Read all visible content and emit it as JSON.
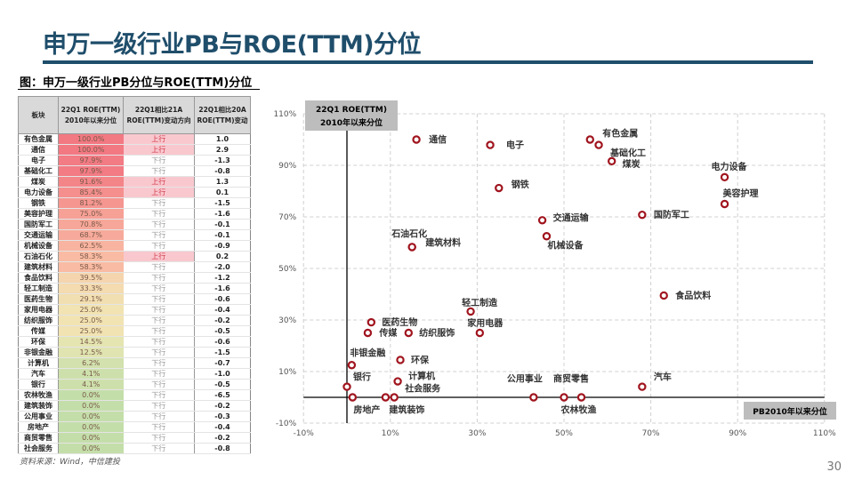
{
  "title": "申万一级行业PB与ROE(TTM)分位",
  "caption": "图：申万一级行业PB分位与ROE(TTM)分位",
  "table": {
    "headers": [
      "板块",
      "22Q1 ROE(TTM) 2010年以来分位",
      "22Q1相比21A ROE(TTM)变动方向",
      "22Q1相比20A ROE(TTM)变动"
    ],
    "rows": [
      [
        "有色金属",
        "100.0%",
        "上行",
        "1.0"
      ],
      [
        "通信",
        "100.0%",
        "上行",
        "2.9"
      ],
      [
        "电子",
        "97.9%",
        "下行",
        "-1.3"
      ],
      [
        "基础化工",
        "97.9%",
        "下行",
        "-0.8"
      ],
      [
        "煤炭",
        "91.6%",
        "上行",
        "1.3"
      ],
      [
        "电力设备",
        "85.4%",
        "上行",
        "0.1"
      ],
      [
        "钢铁",
        "81.2%",
        "下行",
        "-1.5"
      ],
      [
        "美容护理",
        "75.0%",
        "下行",
        "-1.6"
      ],
      [
        "国防军工",
        "70.8%",
        "下行",
        "-0.1"
      ],
      [
        "交通运输",
        "68.7%",
        "下行",
        "-0.1"
      ],
      [
        "机械设备",
        "62.5%",
        "下行",
        "-0.9"
      ],
      [
        "石油石化",
        "58.3%",
        "上行",
        "0.2"
      ],
      [
        "建筑材料",
        "58.3%",
        "下行",
        "-2.0"
      ],
      [
        "食品饮料",
        "39.5%",
        "下行",
        "-1.2"
      ],
      [
        "轻工制造",
        "33.3%",
        "下行",
        "-1.6"
      ],
      [
        "医药生物",
        "29.1%",
        "下行",
        "-0.6"
      ],
      [
        "家用电器",
        "25.0%",
        "下行",
        "-0.4"
      ],
      [
        "纺织服饰",
        "25.0%",
        "下行",
        "-0.2"
      ],
      [
        "传媒",
        "25.0%",
        "下行",
        "-0.5"
      ],
      [
        "环保",
        "14.5%",
        "下行",
        "-0.6"
      ],
      [
        "非银金融",
        "12.5%",
        "下行",
        "-1.5"
      ],
      [
        "计算机",
        "6.2%",
        "下行",
        "-0.7"
      ],
      [
        "汽车",
        "4.1%",
        "下行",
        "-1.0"
      ],
      [
        "银行",
        "4.1%",
        "下行",
        "-0.5"
      ],
      [
        "农林牧渔",
        "0.0%",
        "下行",
        "-6.5"
      ],
      [
        "建筑装饰",
        "0.0%",
        "下行",
        "-0.2"
      ],
      [
        "公用事业",
        "0.0%",
        "下行",
        "-0.3"
      ],
      [
        "房地产",
        "0.0%",
        "下行",
        "-0.4"
      ],
      [
        "商贸零售",
        "0.0%",
        "下行",
        "-0.2"
      ],
      [
        "社会服务",
        "0.0%",
        "下行",
        "-0.8"
      ]
    ]
  },
  "colors": {
    "title": "#1f4e6b",
    "marker": "#a0141e",
    "up_bg": "#f9c8cf",
    "up_text": "#d03a4a"
  },
  "chart_data": {
    "type": "scatter",
    "xlabel": "PB2010年以来分位",
    "ylabel": "22Q1 ROE(TTM) 2010年以来分位",
    "xlim": [
      -10,
      110
    ],
    "ylim": [
      -10,
      110
    ],
    "x_ticks": [
      "-10%",
      "10%",
      "30%",
      "50%",
      "70%",
      "90%",
      "110%"
    ],
    "y_ticks": [
      "-10%",
      "10%",
      "30%",
      "50%",
      "70%",
      "90%",
      "110%"
    ],
    "grid": true,
    "points": [
      {
        "name": "通信",
        "x": 16,
        "y": 100
      },
      {
        "name": "电子",
        "x": 33,
        "y": 97.9
      },
      {
        "name": "有色金属",
        "x": 56,
        "y": 100
      },
      {
        "name": "基础化工",
        "x": 58,
        "y": 97.9
      },
      {
        "name": "煤炭",
        "x": 61,
        "y": 91.6
      },
      {
        "name": "电力设备",
        "x": 87,
        "y": 85.4
      },
      {
        "name": "美容护理",
        "x": 87,
        "y": 75
      },
      {
        "name": "钢铁",
        "x": 35,
        "y": 81.2
      },
      {
        "name": "国防军工",
        "x": 68,
        "y": 70.8
      },
      {
        "name": "交通运输",
        "x": 45,
        "y": 68.7
      },
      {
        "name": "机械设备",
        "x": 46,
        "y": 62.5
      },
      {
        "name": "石油石化",
        "x": 15,
        "y": 58.3
      },
      {
        "name": "建筑材料",
        "x": 15,
        "y": 58.3
      },
      {
        "name": "食品饮料",
        "x": 73,
        "y": 39.5
      },
      {
        "name": "轻工制造",
        "x": 28.5,
        "y": 33.3
      },
      {
        "name": "医药生物",
        "x": 5.6,
        "y": 29.1
      },
      {
        "name": "传媒",
        "x": 4.8,
        "y": 25
      },
      {
        "name": "纺织服饰",
        "x": 14.2,
        "y": 25
      },
      {
        "name": "家用电器",
        "x": 30.6,
        "y": 25
      },
      {
        "name": "非银金融",
        "x": 1.1,
        "y": 12.5
      },
      {
        "name": "环保",
        "x": 12.3,
        "y": 14.5
      },
      {
        "name": "计算机",
        "x": 11.7,
        "y": 6.2
      },
      {
        "name": "社会服务",
        "x": 10.9,
        "y": 0
      },
      {
        "name": "银行",
        "x": 0,
        "y": 4.1
      },
      {
        "name": "汽车",
        "x": 68,
        "y": 4.1
      },
      {
        "name": "房地产",
        "x": 1.3,
        "y": 0
      },
      {
        "name": "建筑装饰",
        "x": 8.9,
        "y": 0
      },
      {
        "name": "公用事业",
        "x": 43,
        "y": 0
      },
      {
        "name": "商贸零售",
        "x": 50,
        "y": 0
      },
      {
        "name": "农林牧渔",
        "x": 54,
        "y": 0
      }
    ]
  },
  "source": "资料来源：Wind，中信建投",
  "page_number": "30"
}
